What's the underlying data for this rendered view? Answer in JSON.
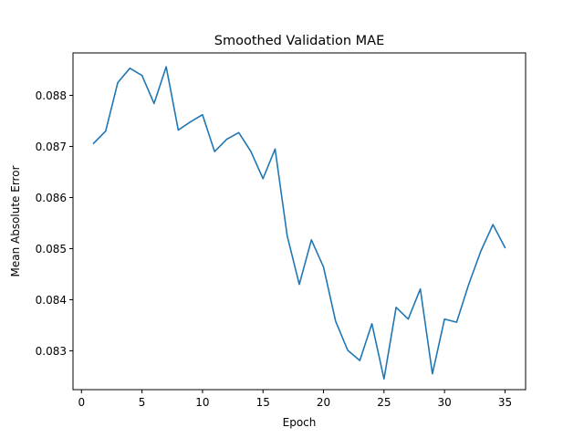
{
  "chart_data": {
    "type": "line",
    "title": "Smoothed Validation MAE",
    "xlabel": "Epoch",
    "ylabel": "Mean Absolute Error",
    "xlim": [
      -0.7,
      36.7
    ],
    "ylim": [
      0.08224,
      0.08883
    ],
    "xticks": [
      0,
      5,
      10,
      15,
      20,
      25,
      30,
      35
    ],
    "yticks": [
      0.083,
      0.084,
      0.085,
      0.086,
      0.087,
      0.088
    ],
    "ytick_labels": [
      "0.083",
      "0.084",
      "0.085",
      "0.086",
      "0.087",
      "0.088"
    ],
    "grid": false,
    "color": "#1f77b4",
    "series": [
      {
        "x": [
          1,
          2,
          3,
          4,
          5,
          6,
          7,
          8,
          9,
          10,
          11,
          12,
          13,
          14,
          15,
          16,
          17,
          18,
          19,
          20,
          21,
          22,
          23,
          24,
          25,
          26,
          27,
          28,
          29,
          30,
          31,
          32,
          33,
          34,
          35
        ],
        "values": [
          0.08706,
          0.0873,
          0.08825,
          0.08853,
          0.08839,
          0.08784,
          0.08856,
          0.08732,
          0.08748,
          0.08762,
          0.0869,
          0.08714,
          0.08727,
          0.0869,
          0.08637,
          0.08695,
          0.08525,
          0.0843,
          0.08517,
          0.08464,
          0.08358,
          0.08301,
          0.08281,
          0.08353,
          0.08245,
          0.08385,
          0.08362,
          0.08421,
          0.08255,
          0.08362,
          0.08356,
          0.0843,
          0.08495,
          0.08547,
          0.08502
        ]
      }
    ]
  }
}
